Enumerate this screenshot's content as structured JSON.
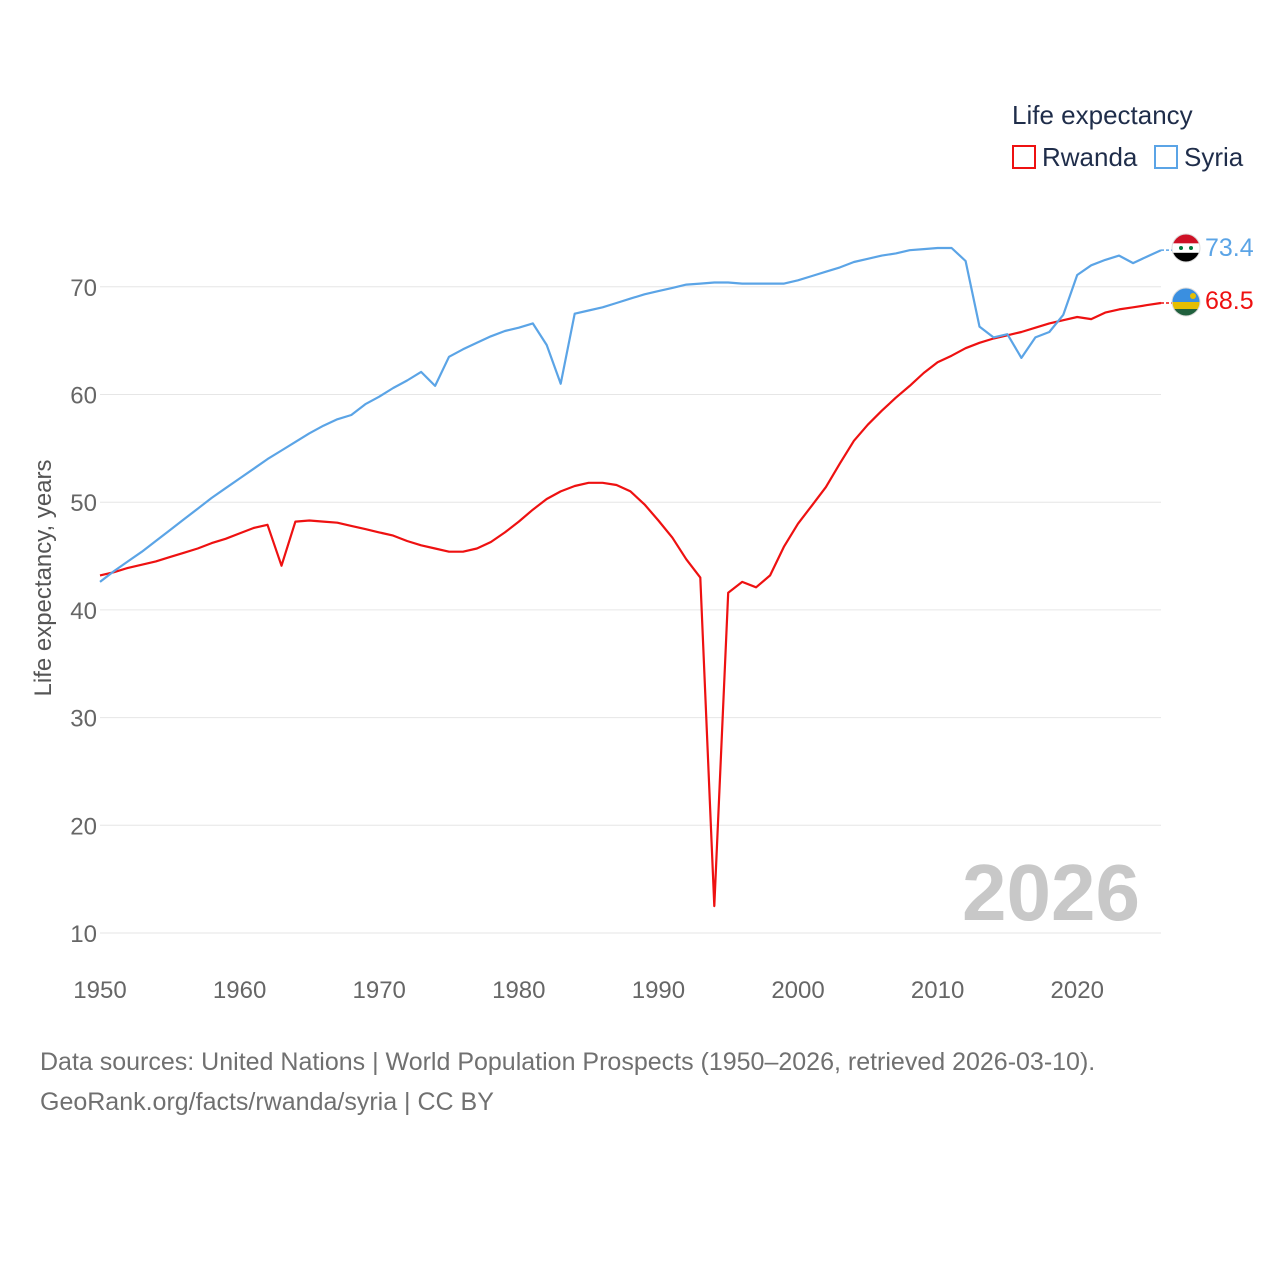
{
  "chart_data": {
    "type": "line",
    "title": "",
    "xlabel": "",
    "ylabel": "Life expectancy, years",
    "xlim": [
      1950,
      2026
    ],
    "ylim": [
      10,
      74
    ],
    "x_ticks": [
      1950,
      1960,
      1970,
      1980,
      1990,
      2000,
      2010,
      2020
    ],
    "y_ticks": [
      10,
      20,
      30,
      40,
      50,
      60,
      70
    ],
    "grid": true,
    "legend": {
      "title": "Life expectancy",
      "placement": "top-right",
      "entries": [
        "Rwanda",
        "Syria"
      ]
    },
    "year_label": "2026",
    "x": [
      1950,
      1951,
      1952,
      1953,
      1954,
      1955,
      1956,
      1957,
      1958,
      1959,
      1960,
      1961,
      1962,
      1963,
      1964,
      1965,
      1966,
      1967,
      1968,
      1969,
      1970,
      1971,
      1972,
      1973,
      1974,
      1975,
      1976,
      1977,
      1978,
      1979,
      1980,
      1981,
      1982,
      1983,
      1984,
      1985,
      1986,
      1987,
      1988,
      1989,
      1990,
      1991,
      1992,
      1993,
      1994,
      1995,
      1996,
      1997,
      1998,
      1999,
      2000,
      2001,
      2002,
      2003,
      2004,
      2005,
      2006,
      2007,
      2008,
      2009,
      2010,
      2011,
      2012,
      2013,
      2014,
      2015,
      2016,
      2017,
      2018,
      2019,
      2020,
      2021,
      2022,
      2023,
      2024,
      2025,
      2026
    ],
    "series": [
      {
        "name": "Rwanda",
        "color": "#ee1111",
        "end_label": "68.5",
        "values": [
          43.2,
          43.5,
          43.9,
          44.2,
          44.5,
          44.9,
          45.3,
          45.7,
          46.2,
          46.6,
          47.1,
          47.6,
          47.9,
          44.1,
          48.2,
          48.3,
          48.2,
          48.1,
          47.8,
          47.5,
          47.2,
          46.9,
          46.4,
          46.0,
          45.7,
          45.4,
          45.4,
          45.7,
          46.3,
          47.2,
          48.2,
          49.3,
          50.3,
          51.0,
          51.5,
          51.8,
          51.8,
          51.6,
          51.0,
          49.8,
          48.3,
          46.7,
          44.7,
          43.0,
          12.5,
          41.6,
          42.6,
          42.1,
          43.2,
          45.9,
          48.0,
          49.7,
          51.4,
          53.6,
          55.7,
          57.2,
          58.5,
          59.7,
          60.8,
          62.0,
          63.0,
          63.6,
          64.3,
          64.8,
          65.2,
          65.5,
          65.8,
          66.2,
          66.6,
          66.9,
          67.2,
          67.0,
          67.6,
          67.9,
          68.1,
          68.3,
          68.5
        ]
      },
      {
        "name": "Syria",
        "color": "#5ba4e6",
        "end_label": "73.4",
        "values": [
          42.6,
          43.6,
          44.5,
          45.4,
          46.4,
          47.4,
          48.4,
          49.4,
          50.4,
          51.3,
          52.2,
          53.1,
          54.0,
          54.8,
          55.6,
          56.4,
          57.1,
          57.7,
          58.1,
          59.1,
          59.8,
          60.6,
          61.3,
          62.1,
          60.8,
          63.5,
          64.2,
          64.8,
          65.4,
          65.9,
          66.2,
          66.6,
          64.6,
          61.0,
          67.5,
          67.8,
          68.1,
          68.5,
          68.9,
          69.3,
          69.6,
          69.9,
          70.2,
          70.3,
          70.4,
          70.4,
          70.3,
          70.3,
          70.3,
          70.3,
          70.6,
          71.0,
          71.4,
          71.8,
          72.3,
          72.6,
          72.9,
          73.1,
          73.4,
          73.5,
          73.6,
          73.6,
          72.4,
          66.3,
          65.3,
          65.6,
          63.4,
          65.3,
          65.8,
          67.4,
          71.1,
          72.0,
          72.5,
          72.9,
          72.2,
          72.8,
          73.4
        ]
      }
    ]
  },
  "footer": {
    "line1": "Data sources: United Nations | World Population Prospects (1950–2026, retrieved 2026-03-10).",
    "line2": "GeoRank.org/facts/rwanda/syria | CC BY"
  }
}
